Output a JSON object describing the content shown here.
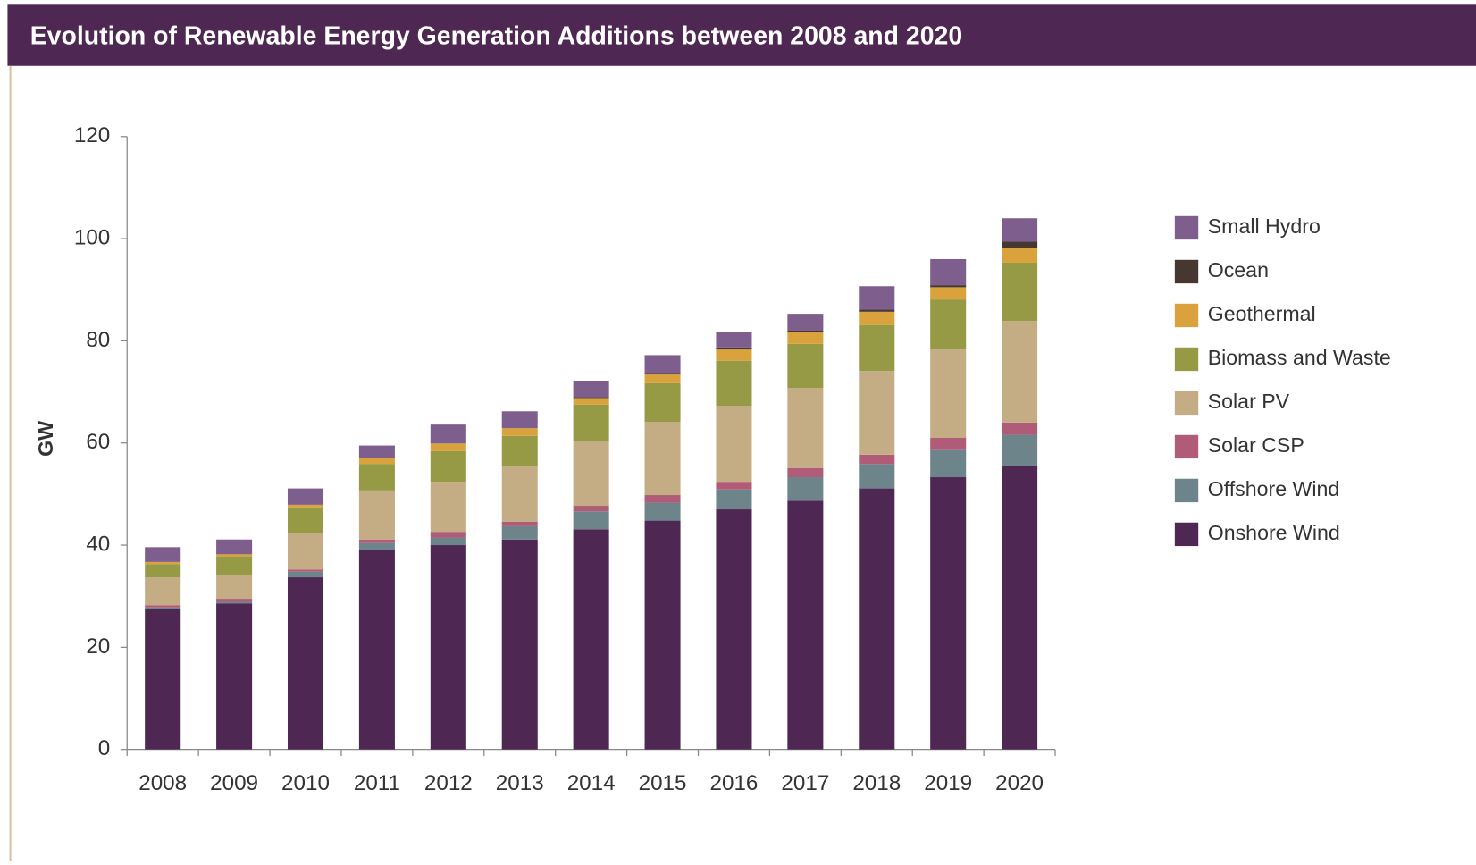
{
  "chart_data": {
    "type": "stacked_bar",
    "title": "Evolution of Renewable Energy Generation Additions between 2008 and 2020",
    "y_label": "GW",
    "categories": [
      "2008",
      "2009",
      "2010",
      "2011",
      "2012",
      "2013",
      "2014",
      "2015",
      "2016",
      "2017",
      "2018",
      "2019",
      "2020"
    ],
    "ylim": [
      0,
      120
    ],
    "yticks": [
      0,
      20,
      40,
      60,
      80,
      100,
      120
    ],
    "legend": "right",
    "series": [
      {
        "name": "Onshore Wind",
        "color": "#4f2753",
        "values": [
          27.5,
          28.6,
          33.7,
          39.1,
          40.0,
          41.1,
          43.1,
          44.8,
          47.0,
          48.7,
          51.1,
          53.3,
          55.5
        ]
      },
      {
        "name": "Offshore Wind",
        "color": "#6e848b",
        "values": [
          0.3,
          0.3,
          1.1,
          1.3,
          1.5,
          2.6,
          3.5,
          3.5,
          3.9,
          4.6,
          4.8,
          5.3,
          6.1
        ]
      },
      {
        "name": "Solar CSP",
        "color": "#b05c78",
        "values": [
          0.4,
          0.6,
          0.4,
          0.7,
          1.1,
          0.9,
          1.1,
          1.5,
          1.5,
          1.8,
          1.8,
          2.4,
          2.4
        ]
      },
      {
        "name": "Solar PV",
        "color": "#c4ad84",
        "values": [
          5.5,
          4.6,
          7.2,
          9.6,
          9.8,
          10.9,
          12.6,
          14.3,
          14.9,
          15.7,
          16.4,
          17.3,
          19.9
        ]
      },
      {
        "name": "Biomass and Waste",
        "color": "#969a45",
        "values": [
          2.6,
          3.7,
          5.0,
          5.2,
          6.0,
          5.9,
          7.2,
          7.6,
          8.8,
          8.6,
          9.0,
          9.8,
          11.4
        ]
      },
      {
        "name": "Geothermal",
        "color": "#d9a23c",
        "values": [
          0.4,
          0.4,
          0.5,
          1.1,
          1.5,
          1.5,
          1.3,
          1.7,
          2.2,
          2.3,
          2.6,
          2.4,
          2.8
        ]
      },
      {
        "name": "Ocean",
        "color": "#463831",
        "values": [
          0,
          0,
          0,
          0,
          0,
          0,
          0.2,
          0.3,
          0.4,
          0.3,
          0.4,
          0.4,
          1.3
        ]
      },
      {
        "name": "Small Hydro",
        "color": "#7e5e8c",
        "values": [
          2.9,
          2.9,
          3.2,
          2.5,
          3.7,
          3.3,
          3.2,
          3.5,
          3.0,
          3.3,
          4.6,
          5.1,
          4.6
        ]
      }
    ]
  }
}
